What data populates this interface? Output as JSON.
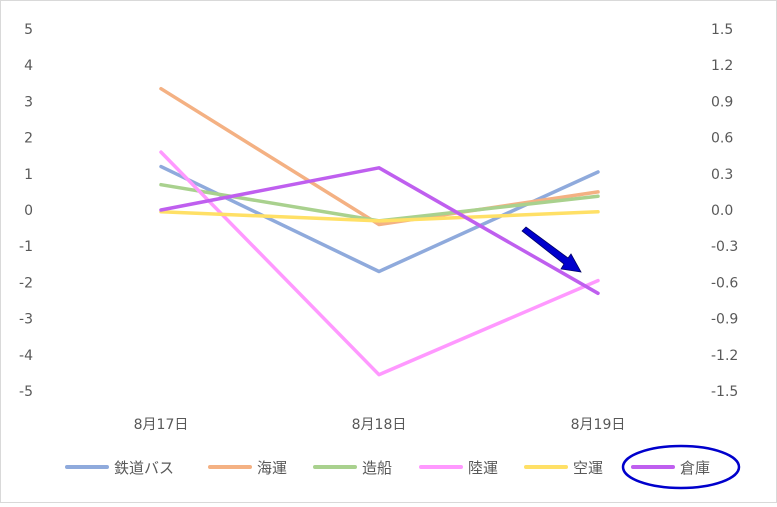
{
  "chart_data": {
    "type": "line",
    "categories": [
      "8月17日",
      "8月18日",
      "8月19日"
    ],
    "ylim_left": [
      -5,
      5
    ],
    "ylim_right": [
      -1.5,
      1.5
    ],
    "yticks_left": [
      "5",
      "4",
      "3",
      "2",
      "1",
      "0",
      "-1",
      "-2",
      "-3",
      "-4",
      "-5"
    ],
    "yticks_right": [
      "1.5",
      "1.2",
      "0.9",
      "0.6",
      "0.3",
      "0.0",
      "-0.3",
      "-0.6",
      "-0.9",
      "-1.2",
      "-1.5"
    ],
    "grid": false,
    "legend_position": "bottom",
    "series": [
      {
        "name": "鉄道バス",
        "color": "#8faadc",
        "axis": "left",
        "values": [
          1.2,
          -1.7,
          1.05
        ]
      },
      {
        "name": "海運",
        "color": "#f4b183",
        "axis": "left",
        "values": [
          3.35,
          -0.4,
          0.5
        ]
      },
      {
        "name": "造船",
        "color": "#a9d18e",
        "axis": "left",
        "values": [
          0.7,
          -0.3,
          0.38
        ]
      },
      {
        "name": "陸運",
        "color": "#ff99ff",
        "axis": "left",
        "values": [
          1.6,
          -4.55,
          -1.95
        ]
      },
      {
        "name": "空運",
        "color": "#ffe066",
        "axis": "left",
        "values": [
          -0.05,
          -0.3,
          -0.05
        ]
      },
      {
        "name": "倉庫",
        "color": "#bf5fef",
        "axis": "right",
        "values": [
          0.0,
          0.35,
          -0.69
        ]
      }
    ],
    "annotation": {
      "type": "arrow",
      "color": "#0000cc",
      "description": "down-right arrow"
    },
    "highlight": {
      "legend_item": "倉庫",
      "outline_color": "#0000cc"
    }
  }
}
